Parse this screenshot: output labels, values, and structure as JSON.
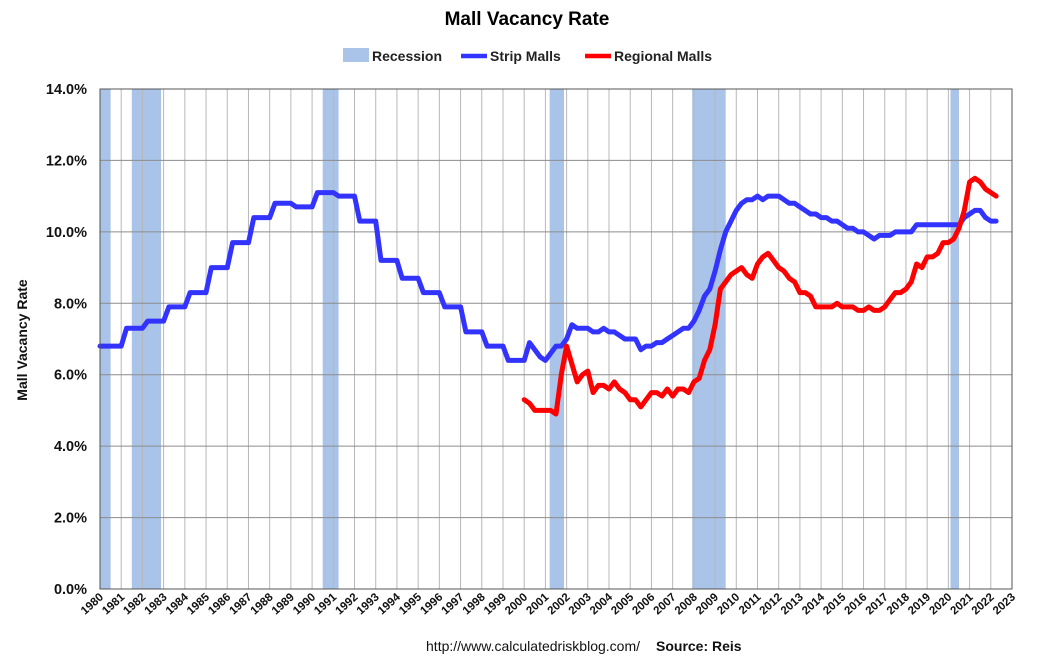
{
  "chart_data": {
    "type": "line",
    "title": "Mall Vacancy Rate",
    "ylabel": "Mall Vacancy Rate",
    "xlabel": "",
    "xlim": [
      1980,
      2023
    ],
    "ylim": [
      0,
      14
    ],
    "y_tick_labels": [
      "0.0%",
      "2.0%",
      "4.0%",
      "6.0%",
      "8.0%",
      "10.0%",
      "12.0%",
      "14.0%"
    ],
    "x_tick_labels": [
      "1980",
      "1981",
      "1982",
      "1983",
      "1984",
      "1985",
      "1986",
      "1987",
      "1988",
      "1989",
      "1990",
      "1991",
      "1992",
      "1993",
      "1994",
      "1995",
      "1996",
      "1997",
      "1998",
      "1999",
      "2000",
      "2001",
      "2002",
      "2003",
      "2004",
      "2005",
      "2006",
      "2007",
      "2008",
      "2009",
      "2010",
      "2011",
      "2012",
      "2013",
      "2014",
      "2015",
      "2016",
      "2017",
      "2018",
      "2019",
      "2020",
      "2021",
      "2022",
      "2023"
    ],
    "grid": true,
    "legend": {
      "placement": "top-center",
      "entries": [
        {
          "name": "Recession",
          "color": "#a9c4e8"
        },
        {
          "name": "Strip Malls",
          "color": "#3333ff"
        },
        {
          "name": "Regional Malls",
          "color": "#ff0000"
        }
      ]
    },
    "recessions": [
      [
        1980.0,
        1980.5
      ],
      [
        1981.5,
        1982.88
      ],
      [
        1990.5,
        1991.25
      ],
      [
        2001.2,
        2001.88
      ],
      [
        2007.92,
        2009.5
      ],
      [
        2020.1,
        2020.5
      ]
    ],
    "series": [
      {
        "name": "Strip Malls",
        "color": "#3333ff",
        "points": [
          [
            1980.0,
            6.8
          ],
          [
            1981.0,
            6.8
          ],
          [
            1981.25,
            7.3
          ],
          [
            1982.0,
            7.3
          ],
          [
            1982.25,
            7.5
          ],
          [
            1983.0,
            7.5
          ],
          [
            1983.25,
            7.9
          ],
          [
            1984.0,
            7.9
          ],
          [
            1984.25,
            8.3
          ],
          [
            1985.0,
            8.3
          ],
          [
            1985.25,
            9.0
          ],
          [
            1986.0,
            9.0
          ],
          [
            1986.25,
            9.7
          ],
          [
            1987.0,
            9.7
          ],
          [
            1987.25,
            10.4
          ],
          [
            1988.0,
            10.4
          ],
          [
            1988.25,
            10.8
          ],
          [
            1989.0,
            10.8
          ],
          [
            1989.25,
            10.7
          ],
          [
            1990.0,
            10.7
          ],
          [
            1990.25,
            11.1
          ],
          [
            1991.0,
            11.1
          ],
          [
            1991.25,
            11.0
          ],
          [
            1992.0,
            11.0
          ],
          [
            1992.25,
            10.3
          ],
          [
            1993.0,
            10.3
          ],
          [
            1993.25,
            9.2
          ],
          [
            1994.0,
            9.2
          ],
          [
            1994.25,
            8.7
          ],
          [
            1995.0,
            8.7
          ],
          [
            1995.25,
            8.3
          ],
          [
            1996.0,
            8.3
          ],
          [
            1996.25,
            7.9
          ],
          [
            1997.0,
            7.9
          ],
          [
            1997.25,
            7.2
          ],
          [
            1998.0,
            7.2
          ],
          [
            1998.25,
            6.8
          ],
          [
            1999.0,
            6.8
          ],
          [
            1999.25,
            6.4
          ],
          [
            2000.0,
            6.4
          ],
          [
            2000.25,
            6.9
          ],
          [
            2000.5,
            6.7
          ],
          [
            2000.75,
            6.5
          ],
          [
            2001.0,
            6.4
          ],
          [
            2001.25,
            6.6
          ],
          [
            2001.5,
            6.8
          ],
          [
            2001.75,
            6.8
          ],
          [
            2002.0,
            7.0
          ],
          [
            2002.25,
            7.4
          ],
          [
            2002.5,
            7.3
          ],
          [
            2002.75,
            7.3
          ],
          [
            2003.0,
            7.3
          ],
          [
            2003.25,
            7.2
          ],
          [
            2003.5,
            7.2
          ],
          [
            2003.75,
            7.3
          ],
          [
            2004.0,
            7.2
          ],
          [
            2004.25,
            7.2
          ],
          [
            2004.5,
            7.1
          ],
          [
            2004.75,
            7.0
          ],
          [
            2005.0,
            7.0
          ],
          [
            2005.25,
            7.0
          ],
          [
            2005.5,
            6.7
          ],
          [
            2005.75,
            6.8
          ],
          [
            2006.0,
            6.8
          ],
          [
            2006.25,
            6.9
          ],
          [
            2006.5,
            6.9
          ],
          [
            2006.75,
            7.0
          ],
          [
            2007.0,
            7.1
          ],
          [
            2007.25,
            7.2
          ],
          [
            2007.5,
            7.3
          ],
          [
            2007.75,
            7.3
          ],
          [
            2008.0,
            7.5
          ],
          [
            2008.25,
            7.8
          ],
          [
            2008.5,
            8.2
          ],
          [
            2008.75,
            8.4
          ],
          [
            2009.0,
            8.9
          ],
          [
            2009.25,
            9.5
          ],
          [
            2009.5,
            10.0
          ],
          [
            2009.75,
            10.3
          ],
          [
            2010.0,
            10.6
          ],
          [
            2010.25,
            10.8
          ],
          [
            2010.5,
            10.9
          ],
          [
            2010.75,
            10.9
          ],
          [
            2011.0,
            11.0
          ],
          [
            2011.25,
            10.9
          ],
          [
            2011.5,
            11.0
          ],
          [
            2011.75,
            11.0
          ],
          [
            2012.0,
            11.0
          ],
          [
            2012.25,
            10.9
          ],
          [
            2012.5,
            10.8
          ],
          [
            2012.75,
            10.8
          ],
          [
            2013.0,
            10.7
          ],
          [
            2013.25,
            10.6
          ],
          [
            2013.5,
            10.5
          ],
          [
            2013.75,
            10.5
          ],
          [
            2014.0,
            10.4
          ],
          [
            2014.25,
            10.4
          ],
          [
            2014.5,
            10.3
          ],
          [
            2014.75,
            10.3
          ],
          [
            2015.0,
            10.2
          ],
          [
            2015.25,
            10.1
          ],
          [
            2015.5,
            10.1
          ],
          [
            2015.75,
            10.0
          ],
          [
            2016.0,
            10.0
          ],
          [
            2016.25,
            9.9
          ],
          [
            2016.5,
            9.8
          ],
          [
            2016.75,
            9.9
          ],
          [
            2017.0,
            9.9
          ],
          [
            2017.25,
            9.9
          ],
          [
            2017.5,
            10.0
          ],
          [
            2017.75,
            10.0
          ],
          [
            2018.0,
            10.0
          ],
          [
            2018.25,
            10.0
          ],
          [
            2018.5,
            10.2
          ],
          [
            2018.75,
            10.2
          ],
          [
            2019.0,
            10.2
          ],
          [
            2019.25,
            10.2
          ],
          [
            2019.5,
            10.2
          ],
          [
            2019.75,
            10.2
          ],
          [
            2020.0,
            10.2
          ],
          [
            2020.25,
            10.2
          ],
          [
            2020.5,
            10.2
          ],
          [
            2020.75,
            10.4
          ],
          [
            2021.0,
            10.5
          ],
          [
            2021.25,
            10.6
          ],
          [
            2021.5,
            10.6
          ],
          [
            2021.75,
            10.4
          ],
          [
            2022.0,
            10.3
          ],
          [
            2022.25,
            10.3
          ]
        ]
      },
      {
        "name": "Regional Malls",
        "color": "#ff0000",
        "points": [
          [
            2000.0,
            5.3
          ],
          [
            2000.25,
            5.2
          ],
          [
            2000.5,
            5.0
          ],
          [
            2000.75,
            5.0
          ],
          [
            2001.0,
            5.0
          ],
          [
            2001.25,
            5.0
          ],
          [
            2001.5,
            4.9
          ],
          [
            2001.75,
            6.0
          ],
          [
            2002.0,
            6.8
          ],
          [
            2002.25,
            6.3
          ],
          [
            2002.5,
            5.8
          ],
          [
            2002.75,
            6.0
          ],
          [
            2003.0,
            6.1
          ],
          [
            2003.25,
            5.5
          ],
          [
            2003.5,
            5.7
          ],
          [
            2003.75,
            5.7
          ],
          [
            2004.0,
            5.6
          ],
          [
            2004.25,
            5.8
          ],
          [
            2004.5,
            5.6
          ],
          [
            2004.75,
            5.5
          ],
          [
            2005.0,
            5.3
          ],
          [
            2005.25,
            5.3
          ],
          [
            2005.5,
            5.1
          ],
          [
            2005.75,
            5.3
          ],
          [
            2006.0,
            5.5
          ],
          [
            2006.25,
            5.5
          ],
          [
            2006.5,
            5.4
          ],
          [
            2006.75,
            5.6
          ],
          [
            2007.0,
            5.4
          ],
          [
            2007.25,
            5.6
          ],
          [
            2007.5,
            5.6
          ],
          [
            2007.75,
            5.5
          ],
          [
            2008.0,
            5.8
          ],
          [
            2008.25,
            5.9
          ],
          [
            2008.5,
            6.4
          ],
          [
            2008.75,
            6.7
          ],
          [
            2009.0,
            7.4
          ],
          [
            2009.25,
            8.4
          ],
          [
            2009.5,
            8.6
          ],
          [
            2009.75,
            8.8
          ],
          [
            2010.0,
            8.9
          ],
          [
            2010.25,
            9.0
          ],
          [
            2010.5,
            8.8
          ],
          [
            2010.75,
            8.7
          ],
          [
            2011.0,
            9.1
          ],
          [
            2011.25,
            9.3
          ],
          [
            2011.5,
            9.4
          ],
          [
            2011.75,
            9.2
          ],
          [
            2012.0,
            9.0
          ],
          [
            2012.25,
            8.9
          ],
          [
            2012.5,
            8.7
          ],
          [
            2012.75,
            8.6
          ],
          [
            2013.0,
            8.3
          ],
          [
            2013.25,
            8.3
          ],
          [
            2013.5,
            8.2
          ],
          [
            2013.75,
            7.9
          ],
          [
            2014.0,
            7.9
          ],
          [
            2014.25,
            7.9
          ],
          [
            2014.5,
            7.9
          ],
          [
            2014.75,
            8.0
          ],
          [
            2015.0,
            7.9
          ],
          [
            2015.25,
            7.9
          ],
          [
            2015.5,
            7.9
          ],
          [
            2015.75,
            7.8
          ],
          [
            2016.0,
            7.8
          ],
          [
            2016.25,
            7.9
          ],
          [
            2016.5,
            7.8
          ],
          [
            2016.75,
            7.8
          ],
          [
            2017.0,
            7.9
          ],
          [
            2017.25,
            8.1
          ],
          [
            2017.5,
            8.3
          ],
          [
            2017.75,
            8.3
          ],
          [
            2018.0,
            8.4
          ],
          [
            2018.25,
            8.6
          ],
          [
            2018.5,
            9.1
          ],
          [
            2018.75,
            9.0
          ],
          [
            2019.0,
            9.3
          ],
          [
            2019.25,
            9.3
          ],
          [
            2019.5,
            9.4
          ],
          [
            2019.75,
            9.7
          ],
          [
            2020.0,
            9.7
          ],
          [
            2020.25,
            9.8
          ],
          [
            2020.5,
            10.1
          ],
          [
            2020.75,
            10.6
          ],
          [
            2021.0,
            11.4
          ],
          [
            2021.25,
            11.5
          ],
          [
            2021.5,
            11.4
          ],
          [
            2021.75,
            11.2
          ],
          [
            2022.0,
            11.1
          ],
          [
            2022.25,
            11.0
          ]
        ]
      }
    ]
  },
  "footer": {
    "url": "http://www.calculatedriskblog.com/",
    "source": "Source: Reis"
  }
}
